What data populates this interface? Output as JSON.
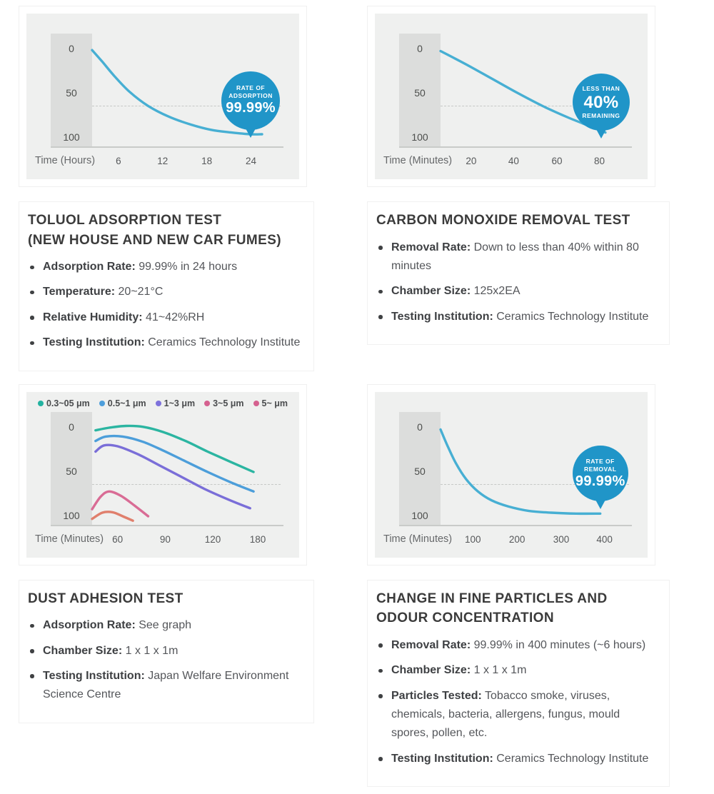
{
  "sections": [
    {
      "title_lines": [
        "TOLUOL ADSORPTION TEST",
        "(NEW HOUSE AND NEW CAR FUMES)"
      ],
      "bullets": [
        {
          "label": "Adsorption Rate:",
          "value": "99.99% in 24 hours"
        },
        {
          "label": "Temperature:",
          "value": "20~21°C"
        },
        {
          "label": "Relative Humidity:",
          "value": "41~42%RH"
        },
        {
          "label": "Testing Institution:",
          "value": "Ceramics Technology Institute"
        }
      ]
    },
    {
      "title_lines": [
        "CARBON MONOXIDE REMOVAL TEST"
      ],
      "bullets": [
        {
          "label": "Removal Rate:",
          "value": "Down to less than 40% within 80 minutes"
        },
        {
          "label": "Chamber Size:",
          "value": "125x2EA"
        },
        {
          "label": "Testing Institution:",
          "value": "Ceramics Technology Institute"
        }
      ]
    },
    {
      "title_lines": [
        "DUST ADHESION TEST"
      ],
      "bullets": [
        {
          "label": "Adsorption Rate:",
          "value": "See graph"
        },
        {
          "label": "Chamber Size:",
          "value": "1 x 1 x 1m"
        },
        {
          "label": "Testing Institution:",
          "value": "Japan Welfare Environment Science Centre"
        }
      ]
    },
    {
      "title_lines": [
        "CHANGE IN FINE PARTICLES AND",
        "ODOUR CONCENTRATION"
      ],
      "bullets": [
        {
          "label": "Removal Rate:",
          "value": "99.99% in 400 minutes (~6 hours)"
        },
        {
          "label": "Chamber Size:",
          "value": "1 x 1 x 1m"
        },
        {
          "label": "Particles Tested:",
          "value": "Tobacco smoke, viruses, chemicals, bacteria, allergens, fungus, mould spores, pollen, etc."
        },
        {
          "label": "Testing Institution:",
          "value": "Ceramics Technology Institute"
        }
      ]
    }
  ],
  "colors": {
    "bubble_blue": "#2095c8",
    "curve_blue": "#47afd3",
    "panel_bg": "#eff0ef",
    "band_bg": "#dcdddc"
  },
  "chart_data": [
    {
      "type": "line",
      "title": "Toluol Adsorption Test (New House and New Car Fumes)",
      "x_axis_label": "Time (Hours)",
      "x_ticks": [
        {
          "label": "6",
          "fx": 0.155
        },
        {
          "label": "12",
          "fx": 0.415
        },
        {
          "label": "18",
          "fx": 0.675
        },
        {
          "label": "24",
          "fx": 0.935
        }
      ],
      "y_ticks": [
        {
          "label": "0",
          "v": 0
        },
        {
          "label": "50",
          "v": 50
        },
        {
          "label": "100",
          "v": 100
        }
      ],
      "y_axis_inverted_0_top": true,
      "dash_v": 64,
      "series": [
        {
          "name": "Toluol adsorption",
          "color": "#47afd3",
          "points": [
            [
              0.0,
              1
            ],
            [
              0.06,
              14
            ],
            [
              0.13,
              30
            ],
            [
              0.22,
              48
            ],
            [
              0.33,
              64
            ],
            [
              0.45,
              76
            ],
            [
              0.58,
              85
            ],
            [
              0.7,
              91
            ],
            [
              0.82,
              94
            ],
            [
              0.93,
              96
            ],
            [
              1.0,
              96
            ]
          ]
        }
      ],
      "bubble": {
        "top": [
          "RATE OF",
          "ADSORPTION"
        ],
        "big": "99.99%",
        "bottom": [],
        "fx": 0.933,
        "v": 58,
        "r": 41
      }
    },
    {
      "type": "line",
      "title": "Carbon Monoxide Removal Test",
      "x_axis_label": "Time (Minutes)",
      "x_ticks": [
        {
          "label": "20",
          "fx": 0.18
        },
        {
          "label": "40",
          "fx": 0.43
        },
        {
          "label": "60",
          "fx": 0.685
        },
        {
          "label": "80",
          "fx": 0.935
        }
      ],
      "y_ticks": [
        {
          "label": "0",
          "v": 0
        },
        {
          "label": "50",
          "v": 50
        },
        {
          "label": "100",
          "v": 100
        }
      ],
      "y_axis_inverted_0_top": true,
      "dash_v": 64,
      "series": [
        {
          "name": "Carbon monoxide remaining",
          "color": "#47afd3",
          "points": [
            [
              0.0,
              2
            ],
            [
              0.15,
              17
            ],
            [
              0.3,
              33
            ],
            [
              0.45,
              49
            ],
            [
              0.6,
              64
            ],
            [
              0.75,
              77
            ],
            [
              0.88,
              87
            ],
            [
              0.97,
              94
            ]
          ]
        }
      ],
      "bubble": {
        "top": [
          "LESS THAN"
        ],
        "big": "40%",
        "bottom": [
          "REMAINING"
        ],
        "fx": 0.945,
        "v": 60,
        "r": 40
      }
    },
    {
      "type": "line",
      "title": "Dust Adhesion Test",
      "x_axis_label": "Time (Minutes)",
      "x_ticks": [
        {
          "label": "60",
          "fx": 0.15
        },
        {
          "label": "90",
          "fx": 0.43
        },
        {
          "label": "120",
          "fx": 0.71
        },
        {
          "label": "180",
          "fx": 0.975
        }
      ],
      "y_ticks": [
        {
          "label": "0",
          "v": 0
        },
        {
          "label": "50",
          "v": 50
        },
        {
          "label": "100",
          "v": 100
        }
      ],
      "y_axis_inverted_0_top": true,
      "dash_v": 64,
      "legend": [
        {
          "label": "0.3~05 μm",
          "color": "#23b2a0"
        },
        {
          "label": "0.5~1 μm",
          "color": "#4d9edb"
        },
        {
          "label": "1~3 μm",
          "color": "#7e72dc"
        },
        {
          "label": "3~5 μm",
          "color": "#d5618f"
        },
        {
          "label": "5~ μm",
          "color": "#d5618f"
        }
      ],
      "series": [
        {
          "name": "0.3~05 μm",
          "color": "#2bb5a1",
          "points": [
            [
              0.02,
              3
            ],
            [
              0.1,
              0
            ],
            [
              0.2,
              -2
            ],
            [
              0.3,
              -1
            ],
            [
              0.42,
              5
            ],
            [
              0.55,
              15
            ],
            [
              0.68,
              27
            ],
            [
              0.82,
              39
            ],
            [
              0.95,
              50
            ]
          ]
        },
        {
          "name": "0.5~1 μm",
          "color": "#4c9eda",
          "points": [
            [
              0.02,
              15
            ],
            [
              0.08,
              10
            ],
            [
              0.18,
              10
            ],
            [
              0.3,
              16
            ],
            [
              0.42,
              26
            ],
            [
              0.55,
              38
            ],
            [
              0.68,
              50
            ],
            [
              0.82,
              62
            ],
            [
              0.95,
              72
            ]
          ]
        },
        {
          "name": "1~3 μm",
          "color": "#7a6ed8",
          "points": [
            [
              0.02,
              27
            ],
            [
              0.07,
              20
            ],
            [
              0.15,
              21
            ],
            [
              0.27,
              30
            ],
            [
              0.4,
              43
            ],
            [
              0.53,
              56
            ],
            [
              0.66,
              69
            ],
            [
              0.8,
              81
            ],
            [
              0.93,
              91
            ]
          ]
        },
        {
          "name": "3~5 μm",
          "color": "#d96c95",
          "points": [
            [
              0.0,
              92
            ],
            [
              0.05,
              78
            ],
            [
              0.1,
              72
            ],
            [
              0.17,
              77
            ],
            [
              0.25,
              88
            ],
            [
              0.33,
              100
            ]
          ]
        },
        {
          "name": "5~ μm",
          "color": "#e07f6c",
          "points": [
            [
              0.0,
              103
            ],
            [
              0.06,
              96
            ],
            [
              0.12,
              95.5
            ],
            [
              0.18,
              100
            ],
            [
              0.24,
              105
            ]
          ]
        }
      ]
    },
    {
      "type": "line",
      "title": "Change in Fine Particles and Odour Concentration",
      "x_axis_label": "Time (Minutes)",
      "x_ticks": [
        {
          "label": "100",
          "fx": 0.19
        },
        {
          "label": "200",
          "fx": 0.45
        },
        {
          "label": "300",
          "fx": 0.71
        },
        {
          "label": "400",
          "fx": 0.965
        }
      ],
      "y_ticks": [
        {
          "label": "0",
          "v": 0
        },
        {
          "label": "50",
          "v": 50
        },
        {
          "label": "100",
          "v": 100
        }
      ],
      "y_axis_inverted_0_top": true,
      "dash_v": 64,
      "series": [
        {
          "name": "Fine particle / odour concentration",
          "color": "#47afd3",
          "points": [
            [
              0.0,
              2
            ],
            [
              0.04,
              20
            ],
            [
              0.09,
              40
            ],
            [
              0.15,
              58
            ],
            [
              0.22,
              72
            ],
            [
              0.3,
              82
            ],
            [
              0.4,
              89
            ],
            [
              0.52,
              94
            ],
            [
              0.65,
              96
            ],
            [
              0.8,
              97
            ],
            [
              0.94,
              97
            ]
          ]
        }
      ],
      "bubble": {
        "top": [
          "RATE OF",
          "REMOVAL"
        ],
        "big": "99.99%",
        "bottom": [],
        "fx": 0.94,
        "v": 52,
        "r": 39
      }
    }
  ]
}
